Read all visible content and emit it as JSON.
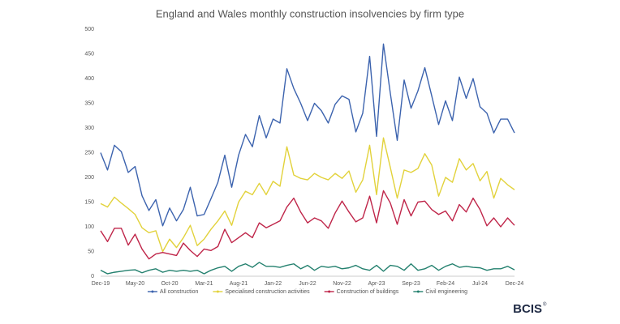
{
  "chart_data": {
    "type": "line",
    "title": "England and Wales monthly construction insolvencies by firm type",
    "brand": "BCIS",
    "categories": [
      "Dec-19",
      null,
      null,
      null,
      null,
      "May-20",
      null,
      null,
      null,
      null,
      "Oct-20",
      null,
      null,
      null,
      null,
      "Mar-21",
      null,
      null,
      null,
      null,
      "Aug-21",
      null,
      null,
      null,
      null,
      "Jan-22",
      null,
      null,
      null,
      null,
      "Jun-22",
      null,
      null,
      null,
      null,
      "Nov-22",
      null,
      null,
      null,
      null,
      "Apr-23",
      null,
      null,
      null,
      null,
      "Sep-23",
      null,
      null,
      null,
      null,
      "Feb-24",
      null,
      null,
      null,
      null,
      "Jul-24",
      null,
      null,
      null,
      null,
      "Dec-24"
    ],
    "series": [
      {
        "name": "All construction",
        "color": "#3c63ae",
        "values": [
          250,
          215,
          265,
          252,
          210,
          222,
          163,
          133,
          155,
          102,
          138,
          112,
          135,
          180,
          122,
          125,
          157,
          190,
          245,
          180,
          245,
          287,
          262,
          325,
          280,
          318,
          310,
          420,
          380,
          350,
          315,
          350,
          335,
          310,
          348,
          365,
          358,
          292,
          330,
          445,
          283,
          470,
          370,
          275,
          397,
          340,
          375,
          422,
          365,
          307,
          355,
          315,
          403,
          360,
          400,
          343,
          330,
          290,
          318,
          318,
          290
        ]
      },
      {
        "name": "Specialised construction activities",
        "color": "#e2d23b",
        "values": [
          147,
          140,
          160,
          148,
          137,
          125,
          98,
          88,
          92,
          50,
          75,
          58,
          78,
          103,
          62,
          75,
          95,
          112,
          132,
          103,
          150,
          172,
          165,
          188,
          165,
          192,
          182,
          262,
          205,
          198,
          195,
          208,
          200,
          195,
          208,
          198,
          213,
          170,
          195,
          265,
          165,
          280,
          220,
          158,
          215,
          210,
          218,
          248,
          225,
          162,
          200,
          190,
          238,
          215,
          228,
          193,
          212,
          158,
          198,
          185,
          175
        ]
      },
      {
        "name": "Construction of buildings",
        "color": "#bf2549",
        "values": [
          92,
          70,
          97,
          97,
          63,
          85,
          55,
          35,
          45,
          48,
          45,
          42,
          67,
          52,
          40,
          55,
          52,
          60,
          95,
          68,
          78,
          88,
          78,
          108,
          98,
          105,
          112,
          140,
          158,
          130,
          108,
          118,
          112,
          97,
          128,
          152,
          130,
          110,
          118,
          162,
          108,
          173,
          148,
          105,
          155,
          122,
          150,
          152,
          135,
          125,
          132,
          112,
          145,
          130,
          158,
          135,
          102,
          118,
          100,
          118,
          103
        ]
      },
      {
        "name": "Civil engineering",
        "color": "#23806e",
        "values": [
          12,
          5,
          8,
          10,
          12,
          13,
          7,
          12,
          15,
          8,
          12,
          10,
          12,
          10,
          12,
          5,
          12,
          17,
          20,
          10,
          20,
          25,
          18,
          28,
          20,
          20,
          18,
          22,
          25,
          15,
          22,
          12,
          20,
          18,
          20,
          15,
          17,
          22,
          15,
          12,
          22,
          10,
          22,
          20,
          12,
          25,
          12,
          15,
          22,
          12,
          20,
          25,
          18,
          20,
          18,
          17,
          12,
          15,
          15,
          20,
          13
        ]
      }
    ],
    "ylim": [
      0,
      500
    ],
    "yticks": [
      0,
      50,
      100,
      150,
      200,
      250,
      300,
      350,
      400,
      450,
      500
    ],
    "grid": false,
    "legend": "bottom"
  }
}
